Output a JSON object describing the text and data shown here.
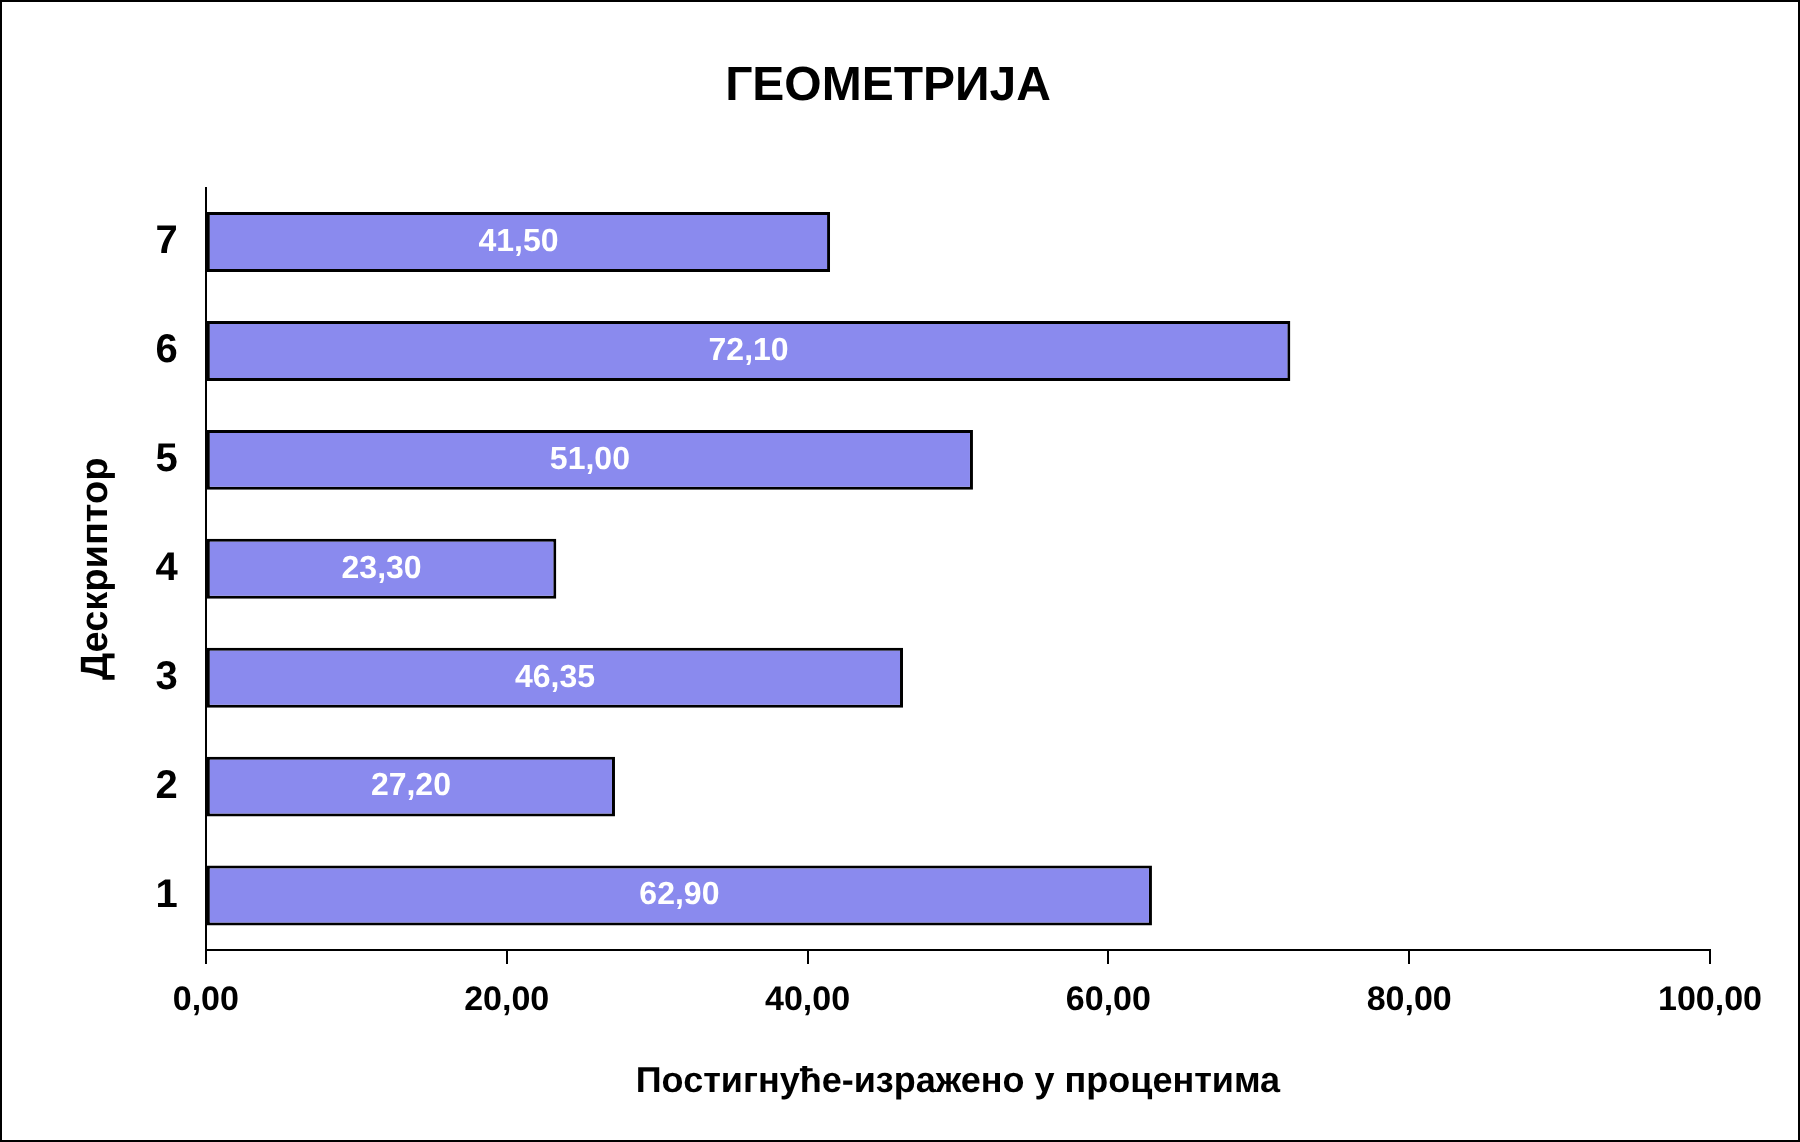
{
  "chart_data": {
    "type": "bar",
    "orientation": "horizontal",
    "title": "ГЕОМЕТРИЈА",
    "xlabel": "Постигнуће-изражено у процентима",
    "ylabel": "Дескриптор",
    "categories": [
      "7",
      "6",
      "5",
      "4",
      "3",
      "2",
      "1"
    ],
    "values": [
      41.5,
      72.1,
      51.0,
      23.3,
      46.35,
      27.2,
      62.9
    ],
    "value_labels": [
      "41,50",
      "72,10",
      "51,00",
      "23,30",
      "46,35",
      "27,20",
      "62,90"
    ],
    "color": "#8a8aee",
    "xlim": [
      0,
      100
    ],
    "xticks": [
      {
        "value": 0,
        "label": "0,00"
      },
      {
        "value": 20,
        "label": "20,00"
      },
      {
        "value": 40,
        "label": "40,00"
      },
      {
        "value": 60,
        "label": "60,00"
      },
      {
        "value": 80,
        "label": "80,00"
      },
      {
        "value": 100,
        "label": "100,00"
      }
    ],
    "grid": false,
    "legend": false
  }
}
